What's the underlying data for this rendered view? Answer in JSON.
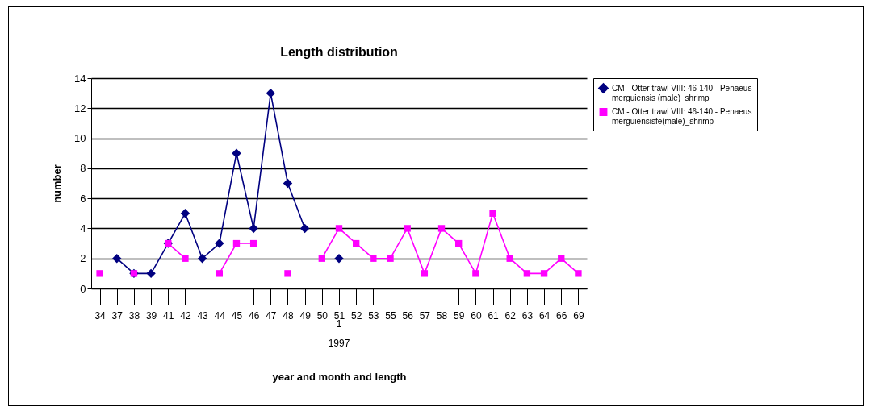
{
  "chart_data": {
    "type": "line",
    "title": "Length distribution",
    "xlabel": "year and month and length",
    "ylabel": "number",
    "categories": [
      "34",
      "37",
      "38",
      "39",
      "41",
      "42",
      "43",
      "44",
      "45",
      "46",
      "47",
      "48",
      "49",
      "50",
      "51",
      "52",
      "53",
      "55",
      "56",
      "57",
      "58",
      "59",
      "60",
      "61",
      "62",
      "63",
      "64",
      "66",
      "69"
    ],
    "series": [
      {
        "name": "CM - Otter trawl VIII: 46-140 - Penaeus merguiensis (male)_shrimp",
        "color": "#000080",
        "marker": "diamond",
        "values": [
          null,
          2,
          1,
          1,
          3,
          5,
          2,
          3,
          9,
          4,
          13,
          7,
          4,
          null,
          2,
          null,
          null,
          null,
          null,
          null,
          null,
          null,
          null,
          null,
          null,
          null,
          null,
          null,
          null
        ]
      },
      {
        "name": "CM - Otter trawl VIII: 46-140 - Penaeus merguiensisfe(male)_shrimp",
        "color": "#ff00ff",
        "marker": "square",
        "values": [
          1,
          null,
          1,
          null,
          3,
          2,
          null,
          1,
          3,
          3,
          null,
          1,
          null,
          2,
          4,
          3,
          2,
          2,
          4,
          1,
          4,
          3,
          1,
          5,
          2,
          1,
          1,
          2,
          1
        ]
      }
    ],
    "ylim": [
      0,
      14
    ],
    "yticks": [
      0,
      2,
      4,
      6,
      8,
      10,
      12,
      14
    ],
    "grid": "y",
    "legend": "right",
    "annotations": [
      "1",
      "1997"
    ]
  }
}
